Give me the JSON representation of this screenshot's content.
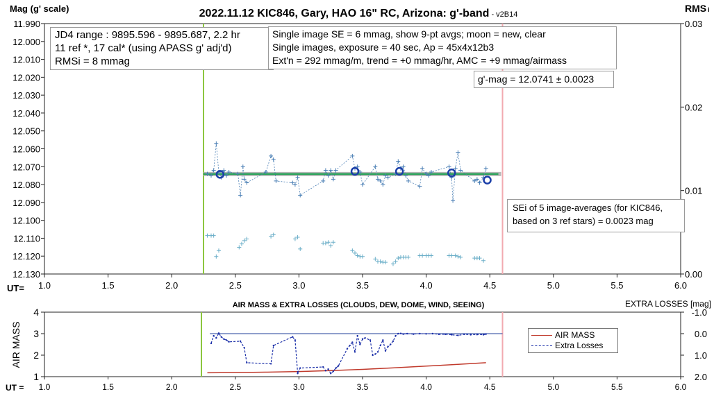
{
  "title": "2022.11.12 KIC846, Gary, HAO 16\" RC, Arizona: g'-band",
  "version": " - v2B14",
  "top_ylabel": "Mag (g' scale)",
  "rms_label": "RMS",
  "rms_label_sub": "i",
  "ut_label": "UT=",
  "ut_label_bottom": "UT =",
  "info_jd": [
    "JD4 range : 9895.596 - 9895.687,  2.2 hr",
    "11 ref *, 17 cal* (using APASS g' adj'd)",
    "RMSi = 8 mmag"
  ],
  "info_se": [
    "Single image SE = 6 mmag, show  9-pt avgs; moon = new, clear",
    "Single images, exposure = 40 sec, Ap = 45x4x12b3",
    "Ext'n = 292 mmag/m, trend = +0 mmag/hr, AMC = +9 mmag/airmass"
  ],
  "info_gmag": "g'-mag = 12.0741 ± 0.0023",
  "info_sei": [
    "SEi of 5 image-averages (for KIC846,",
    "based on 3 ref stars) = 0.0023 mag"
  ],
  "bottom_title": "AIR MASS & EXTRA LOSSES (CLOUDS, DEW, DOME, WIND, SEEING)",
  "bottom_right_label": "EXTRA LOSSES [mag]",
  "bottom_ylabel": "AIR MASS",
  "legend": {
    "airmass": "AIR MASS",
    "losses": "Extra Losses"
  },
  "colors": {
    "single": "#4a7fb5",
    "rms": "#6aaec8",
    "avg": "#1a3ea8",
    "fit": "#2aa35a",
    "mean_band": "#b8b8b8",
    "start_line": "#8cc63f",
    "end_line": "#f2aab0",
    "airmass": "#c0392b",
    "losses": "#1a2ea8",
    "losses_ref": "#1f3f9a"
  },
  "chart_data": [
    {
      "type": "scatter",
      "title": "2022.11.12 KIC846, Gary, HAO 16\" RC, Arizona: g'-band",
      "xlabel": "UT=",
      "ylabel": "Mag (g' scale)",
      "xlim": [
        1.0,
        6.0
      ],
      "ylim": [
        12.13,
        11.99
      ],
      "y2lim": [
        0.0,
        0.03
      ],
      "x_ticks": [
        "1.0",
        "1.5",
        "2.0",
        "2.5",
        "3.0",
        "3.5",
        "4.0",
        "4.5",
        "5.0",
        "5.5",
        "6.0"
      ],
      "y_ticks": [
        "11.990",
        "12.000",
        "12.010",
        "12.020",
        "12.030",
        "12.040",
        "12.050",
        "12.060",
        "12.070",
        "12.080",
        "12.090",
        "12.100",
        "12.110",
        "12.120",
        "12.130"
      ],
      "y2_ticks": [
        "0.03",
        "0.02",
        "0.01",
        "0.00"
      ],
      "vertical_lines": [
        2.25,
        4.6
      ],
      "mean_line": {
        "value": 12.0741,
        "x_range": [
          2.25,
          4.6
        ]
      },
      "series": [
        {
          "role": "single_images",
          "x": [
            2.28,
            2.31,
            2.33,
            2.35,
            2.37,
            2.39,
            2.41,
            2.43,
            2.45,
            2.52,
            2.54,
            2.56,
            2.57,
            2.59,
            2.74,
            2.78,
            2.8,
            2.82,
            2.95,
            2.97,
            2.99,
            3.01,
            3.19,
            3.21,
            3.23,
            3.25,
            3.27,
            3.29,
            3.42,
            3.44,
            3.46,
            3.48,
            3.5,
            3.6,
            3.62,
            3.64,
            3.66,
            3.68,
            3.7,
            3.76,
            3.78,
            3.8,
            3.82,
            3.84,
            3.86,
            3.95,
            3.97,
            4.0,
            4.02,
            4.04,
            4.18,
            4.2,
            4.21,
            4.23,
            4.25,
            4.27,
            4.38,
            4.4,
            4.42,
            4.45,
            4.47
          ],
          "y": [
            12.074,
            12.075,
            12.072,
            12.057,
            12.073,
            12.076,
            12.072,
            12.075,
            12.073,
            12.074,
            12.086,
            12.07,
            12.077,
            12.079,
            12.073,
            12.064,
            12.066,
            12.078,
            12.079,
            12.08,
            12.076,
            12.086,
            12.078,
            12.072,
            12.075,
            12.072,
            12.077,
            12.072,
            12.064,
            12.071,
            12.07,
            12.073,
            12.08,
            12.07,
            12.077,
            12.078,
            12.08,
            12.075,
            12.076,
            12.074,
            12.067,
            12.071,
            12.07,
            12.075,
            12.078,
            12.081,
            12.071,
            12.074,
            12.075,
            12.073,
            12.07,
            12.076,
            12.089,
            12.071,
            12.062,
            12.072,
            12.078,
            12.077,
            12.079,
            12.076,
            12.071
          ]
        },
        {
          "role": "rms_i",
          "x": [
            2.28,
            2.31,
            2.33,
            2.35,
            2.37,
            2.53,
            2.55,
            2.57,
            2.59,
            2.78,
            2.8,
            2.97,
            2.99,
            3.01,
            3.19,
            3.21,
            3.23,
            3.25,
            3.27,
            3.42,
            3.44,
            3.46,
            3.48,
            3.5,
            3.6,
            3.62,
            3.64,
            3.66,
            3.68,
            3.74,
            3.76,
            3.78,
            3.8,
            3.82,
            3.84,
            3.86,
            3.95,
            3.97,
            4.0,
            4.02,
            4.04,
            4.18,
            4.2,
            4.23,
            4.25,
            4.27,
            4.38,
            4.4,
            4.42,
            4.45
          ],
          "y": [
            0.0046,
            0.0046,
            0.0046,
            0.0021,
            0.0028,
            0.0032,
            0.0036,
            0.004,
            0.0042,
            0.0045,
            0.0047,
            0.0042,
            0.0044,
            0.003,
            0.0037,
            0.0037,
            0.0038,
            0.0034,
            0.0038,
            0.0028,
            0.0025,
            0.0022,
            0.0021,
            0.0021,
            0.0018,
            0.0015,
            0.0015,
            0.0014,
            0.0014,
            0.0012,
            0.0015,
            0.0019,
            0.002,
            0.002,
            0.002,
            0.002,
            0.0022,
            0.0022,
            0.0022,
            0.0022,
            0.0022,
            0.0022,
            0.0022,
            0.0022,
            0.0021,
            0.002,
            0.0019,
            0.0019,
            0.0019,
            0.0016
          ]
        },
        {
          "role": "averages",
          "x": [
            2.38,
            3.44,
            3.79,
            4.2,
            4.48
          ],
          "y": [
            12.0743,
            12.0726,
            12.0726,
            12.0735,
            12.0775
          ]
        },
        {
          "role": "fit",
          "x": [
            2.25,
            4.6
          ],
          "y": [
            12.0741,
            12.0741
          ]
        }
      ],
      "annotations": [
        "JD4 range : 9895.596 - 9895.687,  2.2 hr",
        "g'-mag = 12.0741 ± 0.0023",
        "SEi of 5 image-averages (for KIC846, based on 3 ref stars) = 0.0023 mag"
      ]
    },
    {
      "type": "line",
      "title": "AIR MASS & EXTRA LOSSES (CLOUDS, DEW, DOME, WIND, SEEING)",
      "xlabel": "UT =",
      "ylabel": "AIR MASS",
      "y2label": "EXTRA LOSSES [mag]",
      "xlim": [
        1.0,
        6.0
      ],
      "ylim": [
        1,
        4
      ],
      "y2lim": [
        2.0,
        -1.0
      ],
      "x_ticks": [
        "1.0",
        "1.5",
        "2.0",
        "2.5",
        "3.0",
        "3.5",
        "4.0",
        "4.5",
        "5.0",
        "5.5",
        "6.0"
      ],
      "y_ticks": [
        "1",
        "2",
        "3",
        "4"
      ],
      "y2_ticks": [
        "-1.0",
        "0.0",
        "1.0",
        "2.0"
      ],
      "vertical_lines": [
        2.25,
        4.6
      ],
      "legend_position": "right",
      "series": [
        {
          "name": "AIR MASS",
          "x": [
            2.28,
            2.5,
            2.75,
            3.0,
            3.25,
            3.5,
            3.75,
            4.0,
            4.25,
            4.47
          ],
          "y": [
            1.18,
            1.19,
            1.21,
            1.24,
            1.28,
            1.34,
            1.41,
            1.49,
            1.57,
            1.65
          ]
        },
        {
          "name": "Extra Losses",
          "x": [
            2.31,
            2.33,
            2.35,
            2.37,
            2.39,
            2.41,
            2.43,
            2.45,
            2.54,
            2.57,
            2.59,
            2.78,
            2.8,
            2.95,
            2.97,
            2.99,
            3.01,
            3.19,
            3.21,
            3.23,
            3.25,
            3.27,
            3.29,
            3.31,
            3.38,
            3.4,
            3.42,
            3.44,
            3.46,
            3.48,
            3.5,
            3.52,
            3.56,
            3.58,
            3.6,
            3.62,
            3.64,
            3.66,
            3.68,
            3.7,
            3.72,
            3.74,
            3.76,
            3.78,
            3.8,
            3.82,
            3.85,
            3.9,
            3.95,
            4.0,
            4.05,
            4.1,
            4.15,
            4.2,
            4.25,
            4.3,
            4.35,
            4.4,
            4.45,
            4.47
          ],
          "y": [
            0.45,
            0.1,
            0.2,
            -0.02,
            0.15,
            0.25,
            0.3,
            0.38,
            0.35,
            0.65,
            1.35,
            1.4,
            0.55,
            0.15,
            0.3,
            1.85,
            1.6,
            1.55,
            1.72,
            1.65,
            1.85,
            1.75,
            1.6,
            1.5,
            0.7,
            0.55,
            0.4,
            0.85,
            0.1,
            0.5,
            0.25,
            0.2,
            0.3,
            1.0,
            0.95,
            0.85,
            0.55,
            0.3,
            0.8,
            0.6,
            0.5,
            0.35,
            0.1,
            0.0,
            -0.01,
            0.02,
            0.0,
            0.02,
            0.0,
            0.01,
            0.0,
            0.03,
            0.03,
            0.05,
            0.08,
            0.03,
            0.05,
            0.04,
            0.05,
            0.02
          ]
        },
        {
          "role": "reference_zero",
          "x": [
            2.3,
            4.6
          ],
          "y": [
            0.0,
            0.0
          ]
        }
      ]
    }
  ]
}
